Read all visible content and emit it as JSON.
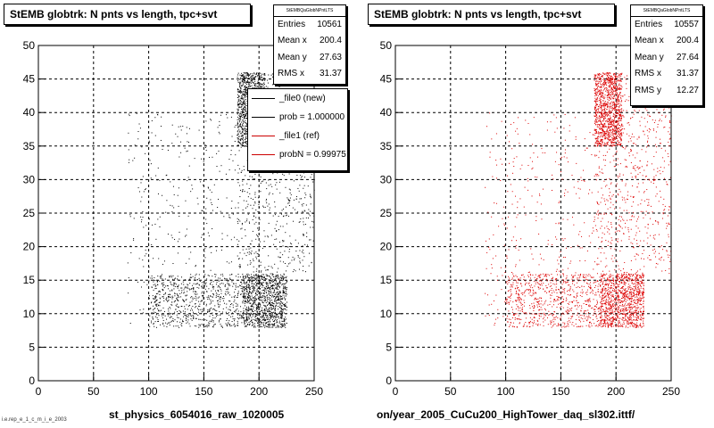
{
  "panels": [
    {
      "title": "StEMB globtrk: N pnts vs length, tpc+svt",
      "x_title": "st_physics_6054016_raw_1020005",
      "stats": {
        "name": "StEMBQaGlobNPntLTS",
        "rows": [
          {
            "label": "Entries",
            "value": "10561"
          },
          {
            "label": "Mean x",
            "value": "200.4"
          },
          {
            "label": "Mean y",
            "value": "27.63"
          },
          {
            "label": "RMS x",
            "value": "31.37"
          }
        ]
      },
      "legend": [
        {
          "label": "_file0 (new)",
          "color": "#000000"
        },
        {
          "label": "prob = 1.000000",
          "color": "#000000"
        },
        {
          "label": "_file1 (ref)",
          "color": "#cc0000"
        },
        {
          "label": "probN = 0.99975",
          "color": "#cc0000"
        }
      ]
    },
    {
      "title": "StEMB globtrk: N pnts vs length, tpc+svt",
      "x_title": "on/year_2005_CuCu200_HighTower_daq_sl302.ittf/",
      "stats": {
        "name": "StEMBQaGlobNPntLTS",
        "rows": [
          {
            "label": "Entries",
            "value": "10557"
          },
          {
            "label": "Mean x",
            "value": "200.4"
          },
          {
            "label": "Mean y",
            "value": "27.64"
          },
          {
            "label": "RMS x",
            "value": "31.37"
          },
          {
            "label": "RMS y",
            "value": "12.27"
          }
        ]
      }
    }
  ],
  "footer": "i.e.rep_e_1_c_m_i_e_2003",
  "chart_data": [
    {
      "type": "scatter",
      "title": "StEMB globtrk: N pnts vs length, tpc+svt",
      "xlabel": "st_physics_6054016_raw_1020005",
      "ylabel": "",
      "xlim": [
        0,
        250
      ],
      "ylim": [
        0,
        50
      ],
      "x_ticks": [
        0,
        50,
        100,
        150,
        200,
        250
      ],
      "y_ticks": [
        0,
        5,
        10,
        15,
        20,
        25,
        30,
        35,
        40,
        45,
        50
      ],
      "grid": true,
      "marker_color": "#000000",
      "entries": 10561,
      "mean_x": 200.4,
      "mean_y": 27.63,
      "rms_x": 31.37,
      "dense_regions": [
        {
          "x_range": [
            180,
            205
          ],
          "y_range": [
            35,
            46
          ],
          "density": "high"
        },
        {
          "x_range": [
            185,
            225
          ],
          "y_range": [
            8,
            16
          ],
          "density": "high"
        },
        {
          "x_range": [
            100,
            185
          ],
          "y_range": [
            8,
            16
          ],
          "density": "medium"
        },
        {
          "x_range": [
            180,
            250
          ],
          "y_range": [
            16,
            46
          ],
          "density": "medium"
        },
        {
          "x_range": [
            80,
            180
          ],
          "y_range": [
            8,
            40
          ],
          "density": "low"
        }
      ]
    },
    {
      "type": "scatter",
      "title": "StEMB globtrk: N pnts vs length, tpc+svt",
      "xlabel": "on/year_2005_CuCu200_HighTower_daq_sl302.ittf/",
      "ylabel": "",
      "xlim": [
        0,
        250
      ],
      "ylim": [
        0,
        50
      ],
      "x_ticks": [
        0,
        50,
        100,
        150,
        200,
        250
      ],
      "y_ticks": [
        0,
        5,
        10,
        15,
        20,
        25,
        30,
        35,
        40,
        45,
        50
      ],
      "grid": true,
      "marker_color": "#dd0000",
      "entries": 10557,
      "mean_x": 200.4,
      "mean_y": 27.64,
      "rms_x": 31.37,
      "rms_y": 12.27,
      "dense_regions": [
        {
          "x_range": [
            180,
            205
          ],
          "y_range": [
            35,
            46
          ],
          "density": "high"
        },
        {
          "x_range": [
            185,
            225
          ],
          "y_range": [
            8,
            16
          ],
          "density": "high"
        },
        {
          "x_range": [
            100,
            185
          ],
          "y_range": [
            8,
            16
          ],
          "density": "medium"
        },
        {
          "x_range": [
            180,
            250
          ],
          "y_range": [
            16,
            46
          ],
          "density": "medium"
        },
        {
          "x_range": [
            80,
            180
          ],
          "y_range": [
            8,
            40
          ],
          "density": "low"
        }
      ]
    }
  ]
}
